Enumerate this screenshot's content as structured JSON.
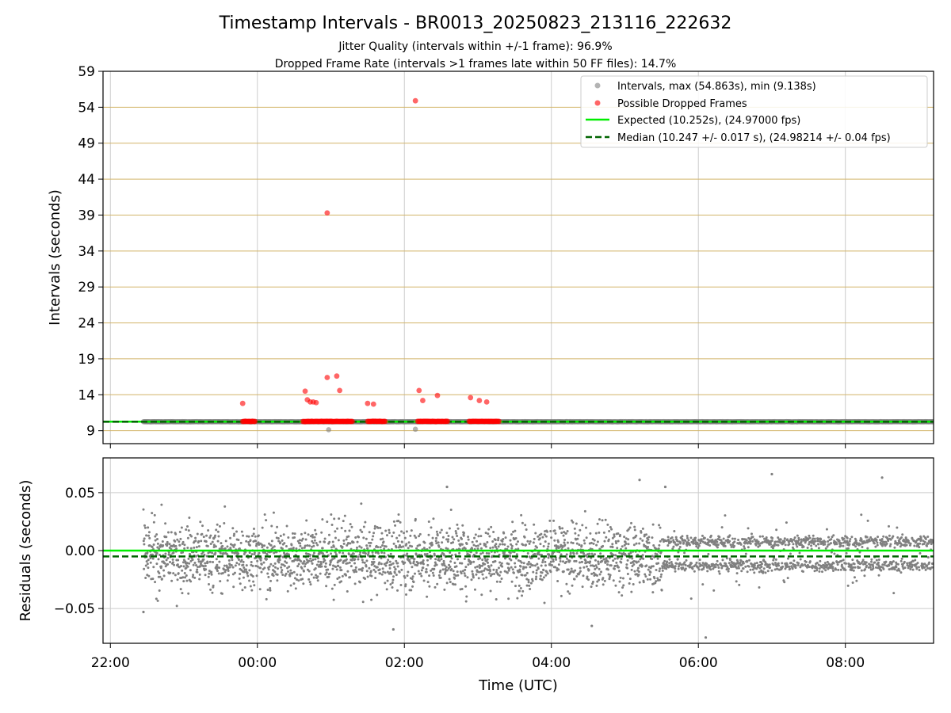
{
  "chart_data": [
    {
      "type": "scatter",
      "title": "Timestamp Intervals - BR0013_20250823_213116_222632",
      "subtitle_lines": [
        "Jitter Quality (intervals within +/-1 frame): 96.9%",
        "Dropped Frame Rate (intervals >1 frames late within 50 FF files): 14.7%"
      ],
      "xlabel": "",
      "ylabel": "Intervals (seconds)",
      "xlim_hours": [
        -2.1,
        9.2
      ],
      "ylim": [
        7.2,
        59
      ],
      "yticks": [
        9,
        14,
        19,
        24,
        29,
        34,
        39,
        44,
        49,
        54,
        59
      ],
      "ytick_labels": [
        "9",
        "14",
        "19",
        "24",
        "29",
        "34",
        "39",
        "44",
        "49",
        "54",
        "59"
      ],
      "grid": "on",
      "legend_position": "top-right",
      "legend": [
        "Intervals, max (54.863s), min (9.138s)",
        "Possible Dropped Frames",
        "Expected (10.252s), (24.97000 fps)",
        "Median (10.247 +/- 0.017 s), (24.98214 +/- 0.04 fps)"
      ],
      "interval_series_range_hours": [
        -1.55,
        9.2
      ],
      "expected_interval": 10.252,
      "median_interval": 10.247,
      "dropped_band_segments_hours": [
        [
          -0.2,
          -0.02
        ],
        [
          0.62,
          1.3
        ],
        [
          1.5,
          1.75
        ],
        [
          2.18,
          2.6
        ],
        [
          2.88,
          3.3
        ]
      ],
      "dropped_band_value": 10.3,
      "dropped_outliers": [
        {
          "x": -0.2,
          "y": 12.8
        },
        {
          "x": 0.65,
          "y": 14.5
        },
        {
          "x": 0.68,
          "y": 13.3
        },
        {
          "x": 0.72,
          "y": 13.0
        },
        {
          "x": 0.76,
          "y": 13.0
        },
        {
          "x": 0.8,
          "y": 12.9
        },
        {
          "x": 0.95,
          "y": 39.3
        },
        {
          "x": 0.95,
          "y": 16.4
        },
        {
          "x": 1.08,
          "y": 16.6
        },
        {
          "x": 1.12,
          "y": 14.6
        },
        {
          "x": 1.5,
          "y": 12.8
        },
        {
          "x": 1.58,
          "y": 12.7
        },
        {
          "x": 2.15,
          "y": 54.9
        },
        {
          "x": 2.2,
          "y": 14.6
        },
        {
          "x": 2.25,
          "y": 13.2
        },
        {
          "x": 2.45,
          "y": 13.9
        },
        {
          "x": 2.9,
          "y": 13.6
        },
        {
          "x": 3.02,
          "y": 13.2
        },
        {
          "x": 3.12,
          "y": 13.0
        }
      ],
      "interval_lows": [
        {
          "x": 0.97,
          "y": 9.14
        },
        {
          "x": 2.15,
          "y": 9.2
        }
      ],
      "colors": {
        "intervals": "#808080",
        "dropped": "#ff0000",
        "expected": "#00ee00",
        "median": "#006400",
        "hgrid": "#d2b469",
        "vgrid": "#cccccc"
      }
    },
    {
      "type": "scatter",
      "xlabel": "Time (UTC)",
      "ylabel": "Residuals (seconds)",
      "xlim_hours": [
        -2.1,
        9.2
      ],
      "ylim": [
        -0.08,
        0.08
      ],
      "yticks": [
        -0.05,
        0.0,
        0.05
      ],
      "ytick_labels": [
        "−0.05",
        "0.00",
        "0.05"
      ],
      "xticks_hours": [
        -2,
        0,
        2,
        4,
        6,
        8
      ],
      "xtick_labels": [
        "22:00",
        "00:00",
        "02:00",
        "04:00",
        "06:00",
        "08:00"
      ],
      "grid": "on",
      "expected_residual": 0.0,
      "median_residual": -0.005,
      "residual_spread_early": 0.02,
      "residual_cluster_late": [
        0.008,
        -0.013
      ],
      "notable_residuals": [
        {
          "x": 5.2,
          "y": 0.061
        },
        {
          "x": 5.55,
          "y": 0.055
        },
        {
          "x": 7.0,
          "y": 0.066
        },
        {
          "x": 8.5,
          "y": 0.063
        },
        {
          "x": 6.1,
          "y": -0.075
        },
        {
          "x": 4.55,
          "y": -0.065
        },
        {
          "x": 1.85,
          "y": -0.068
        },
        {
          "x": 2.58,
          "y": 0.055
        },
        {
          "x": -1.55,
          "y": -0.053
        }
      ]
    }
  ]
}
